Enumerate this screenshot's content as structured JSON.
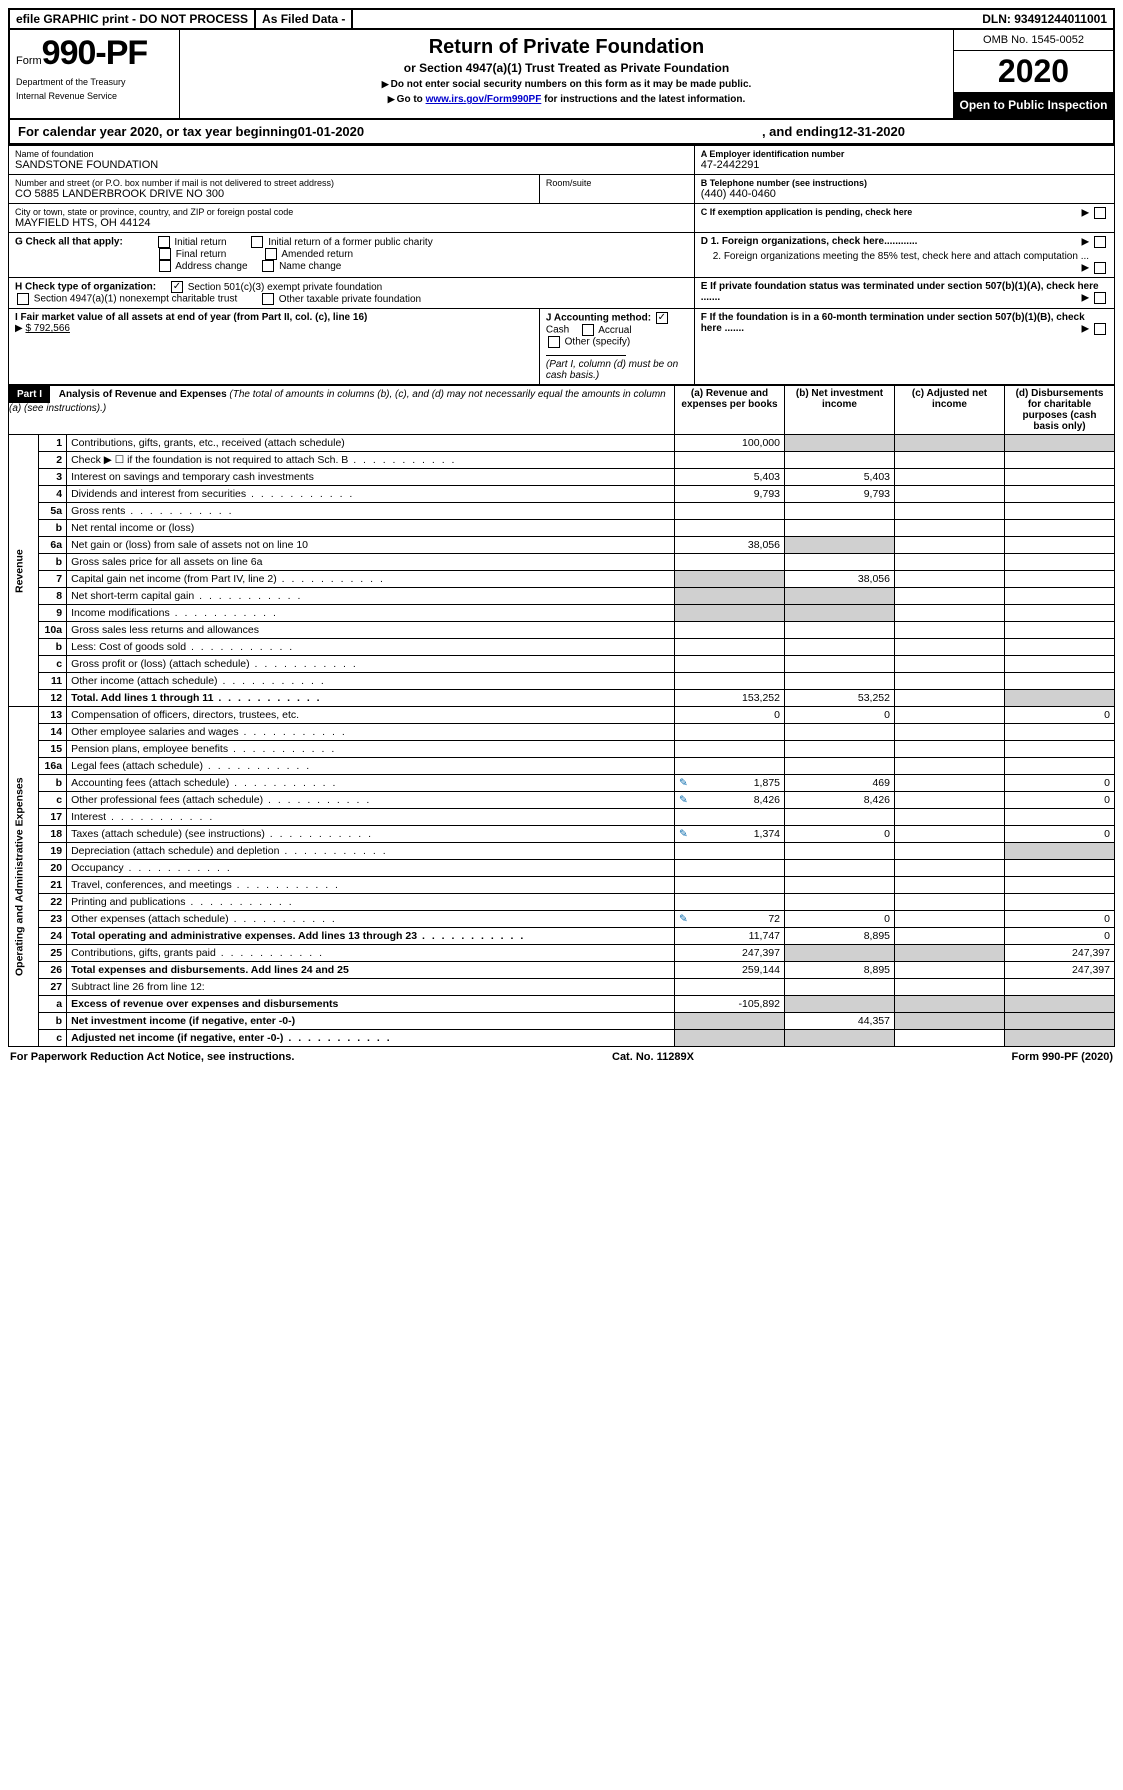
{
  "topbar": {
    "efile": "efile GRAPHIC print - DO NOT PROCESS",
    "asfiled": "As Filed Data -",
    "dln": "DLN: 93491244011001"
  },
  "header": {
    "form_prefix": "Form",
    "form_no": "990-PF",
    "dept1": "Department of the Treasury",
    "dept2": "Internal Revenue Service",
    "title": "Return of Private Foundation",
    "subtitle": "or Section 4947(a)(1) Trust Treated as Private Foundation",
    "note1": "Do not enter social security numbers on this form as it may be made public.",
    "note2_pre": "Go to ",
    "note2_link": "www.irs.gov/Form990PF",
    "note2_post": " for instructions and the latest information.",
    "omb": "OMB No. 1545-0052",
    "year": "2020",
    "openpub": "Open to Public Inspection"
  },
  "calyear": {
    "pre": "For calendar year 2020, or tax year beginning ",
    "begin": "01-01-2020",
    "mid": ", and ending ",
    "end": "12-31-2020"
  },
  "info": {
    "name_lbl": "Name of foundation",
    "name": "SANDSTONE FOUNDATION",
    "ein_lbl": "A Employer identification number",
    "ein": "47-2442291",
    "addr_lbl": "Number and street (or P.O. box number if mail is not delivered to street address)",
    "room_lbl": "Room/suite",
    "addr": "CO 5885 LANDERBROOK DRIVE NO 300",
    "tel_lbl": "B Telephone number (see instructions)",
    "tel": "(440) 440-0460",
    "city_lbl": "City or town, state or province, country, and ZIP or foreign postal code",
    "city": "MAYFIELD HTS, OH  44124",
    "c_lbl": "C If exemption application is pending, check here",
    "g_lbl": "G Check all that apply:",
    "g_opts": [
      "Initial return",
      "Initial return of a former public charity",
      "Final return",
      "Amended return",
      "Address change",
      "Name change"
    ],
    "d1": "D 1. Foreign organizations, check here............",
    "d2": "2. Foreign organizations meeting the 85% test, check here and attach computation ...",
    "h_lbl": "H Check type of organization:",
    "h1": "Section 501(c)(3) exempt private foundation",
    "h2": "Section 4947(a)(1) nonexempt charitable trust",
    "h3": "Other taxable private foundation",
    "e_lbl": "E If private foundation status was terminated under section 507(b)(1)(A), check here .......",
    "i_lbl": "I Fair market value of all assets at end of year (from Part II, col. (c), line 16)",
    "i_val": "$  792,566",
    "j_lbl": "J Accounting method:",
    "j_cash": "Cash",
    "j_accrual": "Accrual",
    "j_other": "Other (specify)",
    "j_note": "(Part I, column (d) must be on cash basis.)",
    "f_lbl": "F If the foundation is in a 60-month termination under section 507(b)(1)(B), check here ......."
  },
  "part1": {
    "label": "Part I",
    "title": "Analysis of Revenue and Expenses",
    "title_note": "(The total of amounts in columns (b), (c), and (d) may not necessarily equal the amounts in column (a) (see instructions).)",
    "col_a": "(a)  Revenue and expenses per books",
    "col_b": "(b)  Net investment income",
    "col_c": "(c)  Adjusted net income",
    "col_d": "(d)  Disbursements for charitable purposes (cash basis only)"
  },
  "section_labels": {
    "revenue": "Revenue",
    "opadmin": "Operating and Administrative Expenses"
  },
  "rows": [
    {
      "n": "1",
      "d": "Contributions, gifts, grants, etc., received (attach schedule)",
      "a": "100,000",
      "b": "",
      "c": "",
      "dd": "",
      "gb": true,
      "gc": true,
      "gd": true
    },
    {
      "n": "2",
      "d": "Check ▶ ☐ if the foundation is not required to attach Sch. B",
      "a": "",
      "b": "",
      "c": "",
      "dd": "",
      "dots": true
    },
    {
      "n": "3",
      "d": "Interest on savings and temporary cash investments",
      "a": "5,403",
      "b": "5,403",
      "c": "",
      "dd": ""
    },
    {
      "n": "4",
      "d": "Dividends and interest from securities",
      "a": "9,793",
      "b": "9,793",
      "c": "",
      "dd": "",
      "dots": true
    },
    {
      "n": "5a",
      "d": "Gross rents",
      "a": "",
      "b": "",
      "c": "",
      "dd": "",
      "dots": true
    },
    {
      "n": "b",
      "d": "Net rental income or (loss)",
      "a": "",
      "b": "",
      "c": "",
      "dd": ""
    },
    {
      "n": "6a",
      "d": "Net gain or (loss) from sale of assets not on line 10",
      "a": "38,056",
      "b": "",
      "c": "",
      "dd": "",
      "gb": true
    },
    {
      "n": "b",
      "d": "Gross sales price for all assets on line 6a",
      "a": "",
      "b": "",
      "c": "",
      "dd": ""
    },
    {
      "n": "7",
      "d": "Capital gain net income (from Part IV, line 2)",
      "a": "",
      "b": "38,056",
      "c": "",
      "dd": "",
      "ga": true,
      "dots": true
    },
    {
      "n": "8",
      "d": "Net short-term capital gain",
      "a": "",
      "b": "",
      "c": "",
      "dd": "",
      "ga": true,
      "gb": true,
      "dots": true
    },
    {
      "n": "9",
      "d": "Income modifications",
      "a": "",
      "b": "",
      "c": "",
      "dd": "",
      "ga": true,
      "gb": true,
      "dots": true
    },
    {
      "n": "10a",
      "d": "Gross sales less returns and allowances",
      "a": "",
      "b": "",
      "c": "",
      "dd": ""
    },
    {
      "n": "b",
      "d": "Less: Cost of goods sold",
      "a": "",
      "b": "",
      "c": "",
      "dd": "",
      "dots": true
    },
    {
      "n": "c",
      "d": "Gross profit or (loss) (attach schedule)",
      "a": "",
      "b": "",
      "c": "",
      "dd": "",
      "dots": true
    },
    {
      "n": "11",
      "d": "Other income (attach schedule)",
      "a": "",
      "b": "",
      "c": "",
      "dd": "",
      "dots": true
    },
    {
      "n": "12",
      "d": "Total. Add lines 1 through 11",
      "bold": true,
      "a": "153,252",
      "b": "53,252",
      "c": "",
      "dd": "",
      "dots": true,
      "gd": true
    },
    {
      "n": "13",
      "d": "Compensation of officers, directors, trustees, etc.",
      "a": "0",
      "b": "0",
      "c": "",
      "dd": "0"
    },
    {
      "n": "14",
      "d": "Other employee salaries and wages",
      "a": "",
      "b": "",
      "c": "",
      "dd": "",
      "dots": true
    },
    {
      "n": "15",
      "d": "Pension plans, employee benefits",
      "a": "",
      "b": "",
      "c": "",
      "dd": "",
      "dots": true
    },
    {
      "n": "16a",
      "d": "Legal fees (attach schedule)",
      "a": "",
      "b": "",
      "c": "",
      "dd": "",
      "dots": true
    },
    {
      "n": "b",
      "d": "Accounting fees (attach schedule)",
      "icon": true,
      "a": "1,875",
      "b": "469",
      "c": "",
      "dd": "0",
      "dots": true
    },
    {
      "n": "c",
      "d": "Other professional fees (attach schedule)",
      "icon": true,
      "a": "8,426",
      "b": "8,426",
      "c": "",
      "dd": "0",
      "dots": true
    },
    {
      "n": "17",
      "d": "Interest",
      "a": "",
      "b": "",
      "c": "",
      "dd": "",
      "dots": true
    },
    {
      "n": "18",
      "d": "Taxes (attach schedule) (see instructions)",
      "icon": true,
      "a": "1,374",
      "b": "0",
      "c": "",
      "dd": "0",
      "dots": true
    },
    {
      "n": "19",
      "d": "Depreciation (attach schedule) and depletion",
      "a": "",
      "b": "",
      "c": "",
      "dd": "",
      "gd": true,
      "dots": true
    },
    {
      "n": "20",
      "d": "Occupancy",
      "a": "",
      "b": "",
      "c": "",
      "dd": "",
      "dots": true
    },
    {
      "n": "21",
      "d": "Travel, conferences, and meetings",
      "a": "",
      "b": "",
      "c": "",
      "dd": "",
      "dots": true
    },
    {
      "n": "22",
      "d": "Printing and publications",
      "a": "",
      "b": "",
      "c": "",
      "dd": "",
      "dots": true
    },
    {
      "n": "23",
      "d": "Other expenses (attach schedule)",
      "icon": true,
      "a": "72",
      "b": "0",
      "c": "",
      "dd": "0",
      "dots": true
    },
    {
      "n": "24",
      "d": "Total operating and administrative expenses. Add lines 13 through 23",
      "bold": true,
      "a": "11,747",
      "b": "8,895",
      "c": "",
      "dd": "0",
      "dots": true
    },
    {
      "n": "25",
      "d": "Contributions, gifts, grants paid",
      "a": "247,397",
      "b": "",
      "c": "",
      "dd": "247,397",
      "gb": true,
      "gc": true,
      "dots": true
    },
    {
      "n": "26",
      "d": "Total expenses and disbursements. Add lines 24 and 25",
      "bold": true,
      "a": "259,144",
      "b": "8,895",
      "c": "",
      "dd": "247,397"
    },
    {
      "n": "27",
      "d": "Subtract line 26 from line 12:",
      "a": "",
      "b": "",
      "c": "",
      "dd": ""
    },
    {
      "n": "a",
      "d": "Excess of revenue over expenses and disbursements",
      "bold": true,
      "a": "-105,892",
      "b": "",
      "c": "",
      "dd": "",
      "gb": true,
      "gc": true,
      "gd": true
    },
    {
      "n": "b",
      "d": "Net investment income (if negative, enter -0-)",
      "bold": true,
      "a": "",
      "b": "44,357",
      "c": "",
      "dd": "",
      "ga": true,
      "gc": true,
      "gd": true
    },
    {
      "n": "c",
      "d": "Adjusted net income (if negative, enter -0-)",
      "bold": true,
      "a": "",
      "b": "",
      "c": "",
      "dd": "",
      "ga": true,
      "gb": true,
      "gd": true,
      "dots": true
    }
  ],
  "footer": {
    "left": "For Paperwork Reduction Act Notice, see instructions.",
    "mid": "Cat. No. 11289X",
    "right": "Form 990-PF (2020)"
  },
  "colors": {
    "black": "#000000",
    "gray": "#d0d0d0",
    "link": "#0000cc"
  }
}
